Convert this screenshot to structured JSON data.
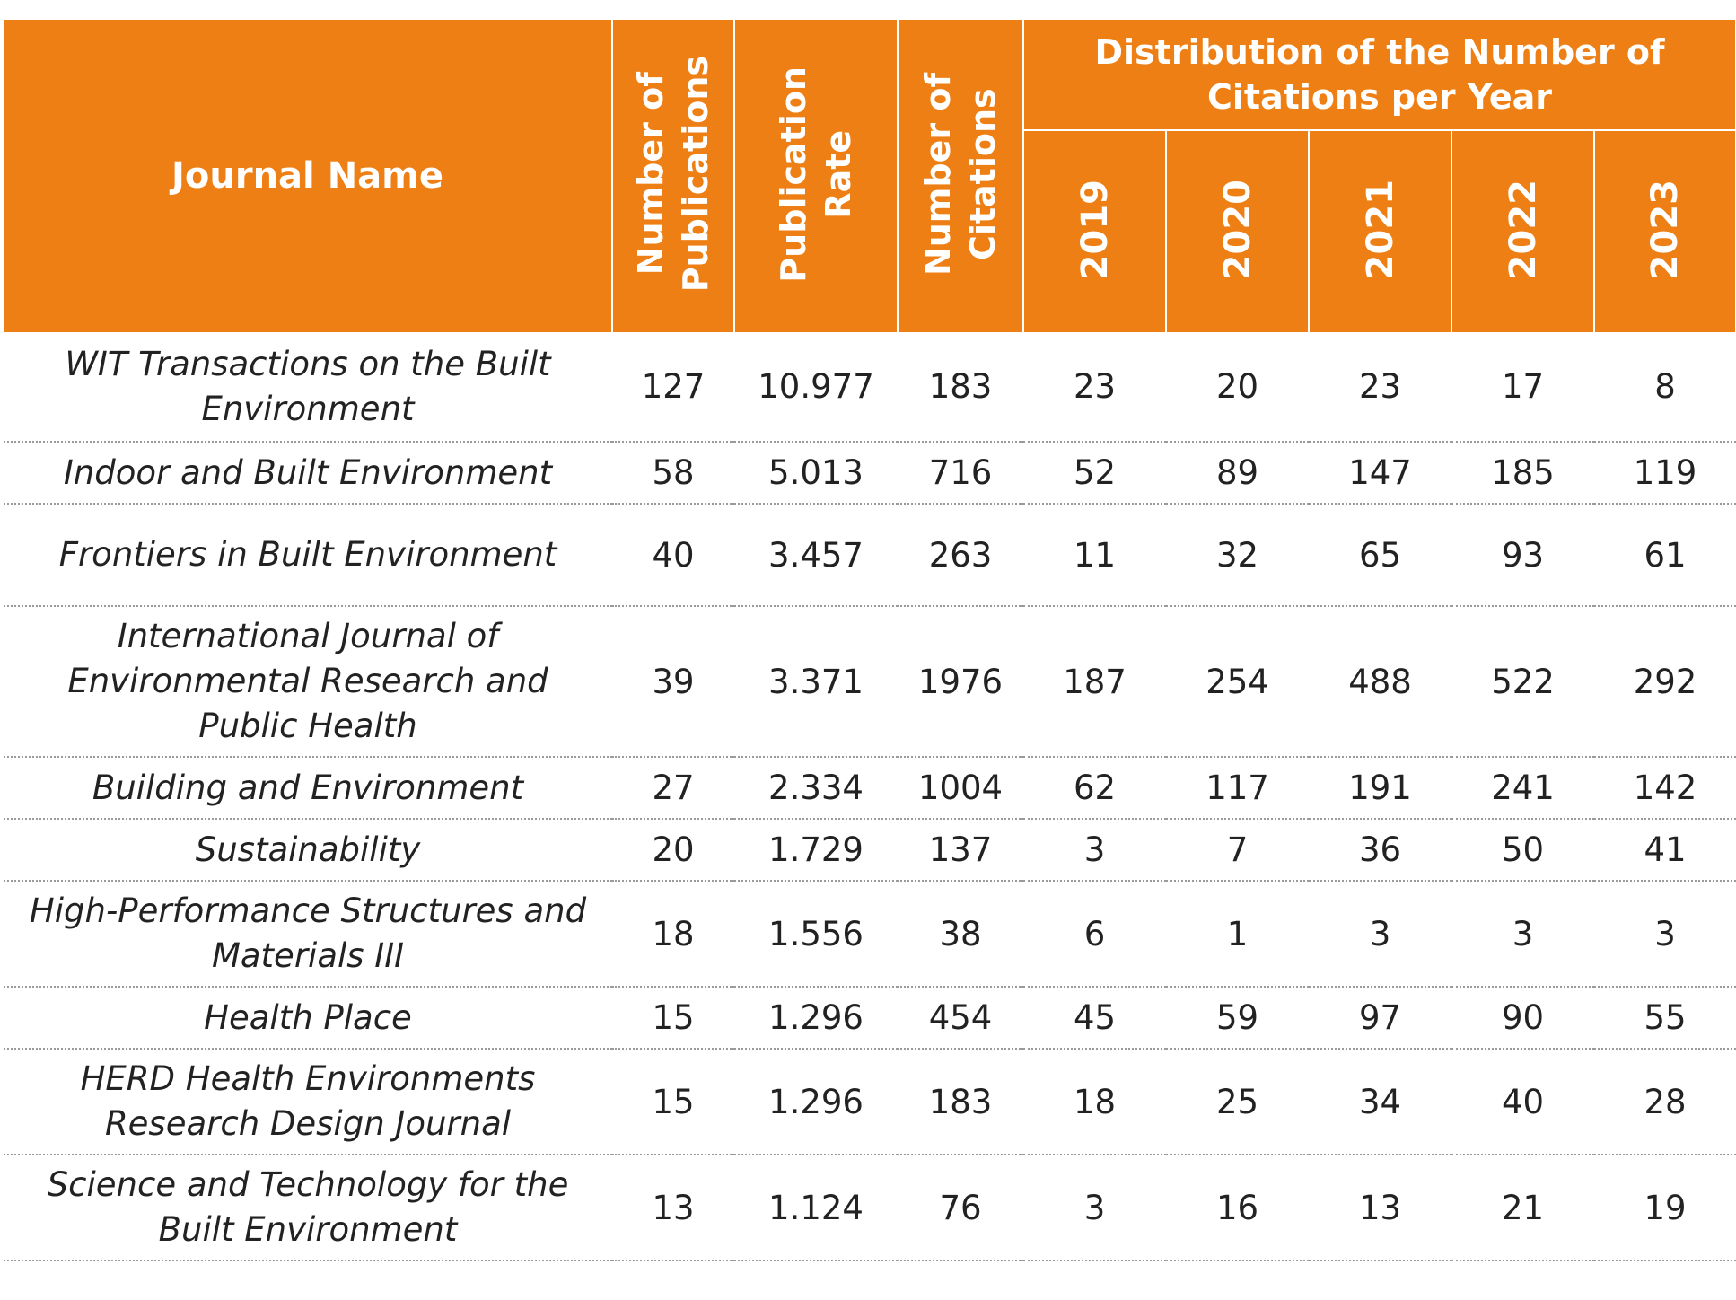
{
  "table": {
    "header": {
      "journal_name": "Journal Name",
      "number_of_publications": "Number of\nPublications",
      "publication_rate": "Publication\nRate",
      "number_of_citations": "Number of\nCitations",
      "distribution_group": "Distribution of the Number of Citations per Year",
      "years": [
        "2019",
        "2020",
        "2021",
        "2022",
        "2023"
      ]
    },
    "rows": [
      {
        "journal": "WIT Transactions on the Built Environment",
        "publications": "127",
        "rate": "10.977",
        "citations": "183",
        "years": [
          "23",
          "20",
          "23",
          "17",
          "8"
        ]
      },
      {
        "journal": "Indoor and Built Environment",
        "publications": "58",
        "rate": "5.013",
        "citations": "716",
        "years": [
          "52",
          "89",
          "147",
          "185",
          "119"
        ]
      },
      {
        "journal": "Frontiers in Built Environment",
        "publications": "40",
        "rate": "3.457",
        "citations": "263",
        "years": [
          "11",
          "32",
          "65",
          "93",
          "61"
        ]
      },
      {
        "journal": "International Journal of Environmental Research and Public Health",
        "publications": "39",
        "rate": "3.371",
        "citations": "1976",
        "years": [
          "187",
          "254",
          "488",
          "522",
          "292"
        ]
      },
      {
        "journal": "Building and Environment",
        "publications": "27",
        "rate": "2.334",
        "citations": "1004",
        "years": [
          "62",
          "117",
          "191",
          "241",
          "142"
        ]
      },
      {
        "journal": "Sustainability",
        "publications": "20",
        "rate": "1.729",
        "citations": "137",
        "years": [
          "3",
          "7",
          "36",
          "50",
          "41"
        ]
      },
      {
        "journal": "High-Performance Structures and Materials III",
        "publications": "18",
        "rate": "1.556",
        "citations": "38",
        "years": [
          "6",
          "1",
          "3",
          "3",
          "3"
        ]
      },
      {
        "journal": "Health Place",
        "publications": "15",
        "rate": "1.296",
        "citations": "454",
        "years": [
          "45",
          "59",
          "97",
          "90",
          "55"
        ]
      },
      {
        "journal": "HERD Health Environments Research Design Journal",
        "publications": "15",
        "rate": "1.296",
        "citations": "183",
        "years": [
          "18",
          "25",
          "34",
          "40",
          "28"
        ]
      },
      {
        "journal": "Science and Technology for the Built Environment",
        "publications": "13",
        "rate": "1.124",
        "citations": "76",
        "years": [
          "3",
          "16",
          "13",
          "21",
          "19"
        ]
      }
    ]
  },
  "colors": {
    "header_background": "#ee7f14",
    "header_text": "#ffffff",
    "row_divider": "#9a9a9a"
  }
}
